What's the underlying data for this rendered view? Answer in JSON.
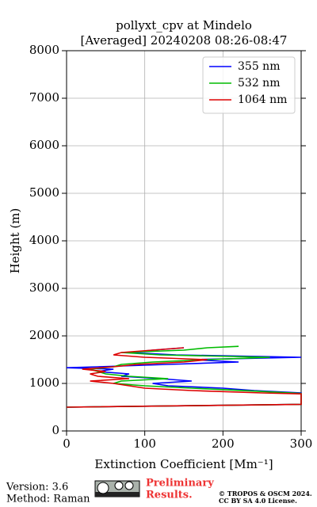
{
  "chart_data": {
    "type": "line",
    "orientation": "vertical-profile",
    "title": [
      "pollyxt_cpv at Mindelo",
      "[Averaged] 20240208 08:26-08:47"
    ],
    "xlabel": "Extinction Coefficient [Mm⁻¹]",
    "ylabel": "Height (m)",
    "xlim": [
      0,
      300
    ],
    "xticks": [
      0,
      100,
      200,
      300
    ],
    "ylim": [
      0,
      8000
    ],
    "yticks": [
      0,
      1000,
      2000,
      3000,
      4000,
      5000,
      6000,
      7000,
      8000
    ],
    "grid": true,
    "legend": "upper right",
    "series": [
      {
        "name": "355 nm",
        "color": "#0000ff",
        "y": [
          500,
          560,
          800,
          850,
          900,
          950,
          1000,
          1050,
          1100,
          1150,
          1200,
          1250,
          1300,
          1330,
          1350,
          1400,
          1450,
          1500,
          1550,
          1600,
          1650,
          1700,
          1750
        ],
        "values": [
          0,
          300,
          300,
          240,
          200,
          130,
          110,
          160,
          120,
          70,
          80,
          40,
          60,
          0,
          40,
          130,
          220,
          160,
          300,
          140,
          80,
          110,
          150
        ]
      },
      {
        "name": "532 nm",
        "color": "#00bb00",
        "y": [
          500,
          560,
          790,
          830,
          870,
          900,
          950,
          1000,
          1050,
          1100,
          1150,
          1200,
          1250,
          1300,
          1350,
          1400,
          1450,
          1500,
          1550,
          1600,
          1650,
          1700,
          1750,
          1780
        ],
        "values": [
          0,
          300,
          300,
          250,
          200,
          160,
          100,
          60,
          70,
          130,
          80,
          50,
          40,
          30,
          60,
          70,
          110,
          180,
          260,
          120,
          70,
          150,
          180,
          220
        ]
      },
      {
        "name": "1064 nm",
        "color": "#dd0000",
        "y": [
          500,
          560,
          780,
          800,
          850,
          900,
          950,
          1000,
          1050,
          1100,
          1150,
          1200,
          1250,
          1300,
          1350,
          1400,
          1450,
          1500,
          1550,
          1600,
          1650,
          1700,
          1750
        ],
        "values": [
          0,
          300,
          300,
          250,
          160,
          100,
          80,
          60,
          30,
          80,
          40,
          30,
          50,
          20,
          60,
          90,
          150,
          180,
          100,
          60,
          70,
          110,
          150
        ]
      }
    ]
  },
  "footer": {
    "version": "Version: 3.6",
    "method": "Method: Raman",
    "notice": [
      "Preliminary",
      "Results."
    ],
    "copyright": [
      "© TROPOS & OSCM 2024.",
      "CC BY SA 4.0 License."
    ]
  }
}
